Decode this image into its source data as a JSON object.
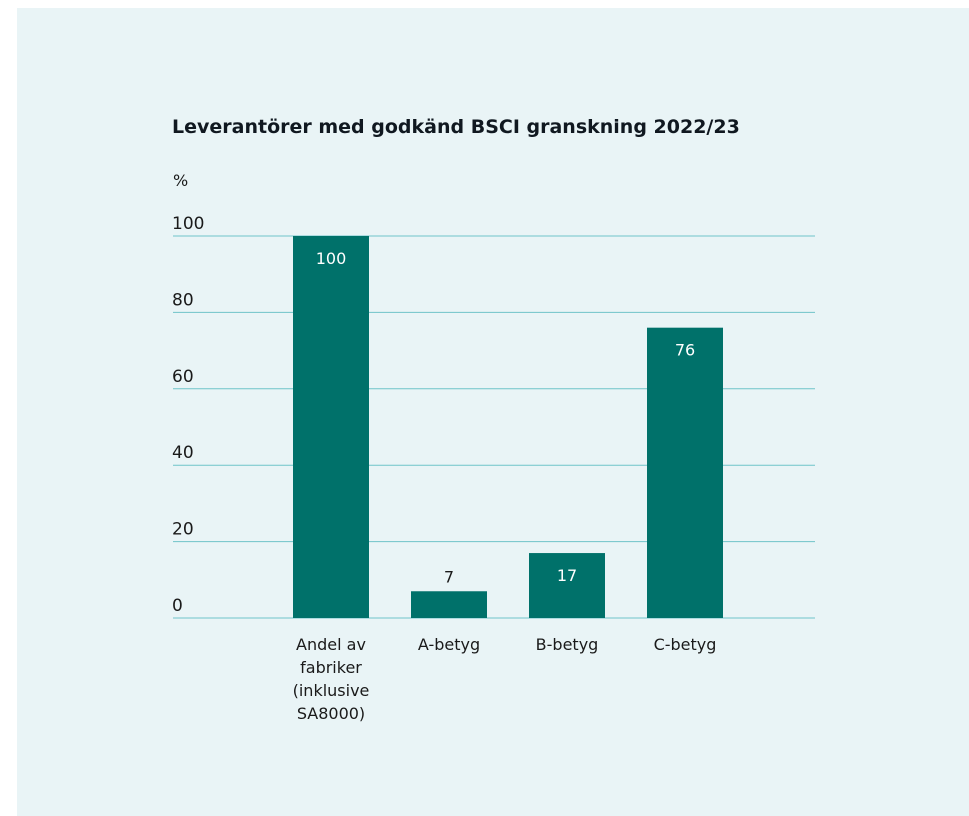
{
  "colors": {
    "background": "#e9f4f6",
    "bar": "#00716a",
    "gridline": "#6fc3c9",
    "label_inside": "#ffffff",
    "label_outside": "#1a1a1a"
  },
  "chart_data": {
    "type": "bar",
    "title": "Leverantörer med godkänd BSCI granskning 2022/23",
    "ylabel": "%",
    "xlabel": "",
    "ylim": [
      0,
      100
    ],
    "yticks": [
      0,
      20,
      40,
      60,
      80,
      100
    ],
    "grid": true,
    "categories": [
      [
        "Andel av",
        "fabriker",
        "(inklusive",
        "SA8000)"
      ],
      [
        "A-betyg"
      ],
      [
        "B-betyg"
      ],
      [
        "C-betyg"
      ]
    ],
    "values": [
      100,
      7,
      17,
      76
    ],
    "data_labels": [
      "100",
      "7",
      "17",
      "76"
    ]
  }
}
